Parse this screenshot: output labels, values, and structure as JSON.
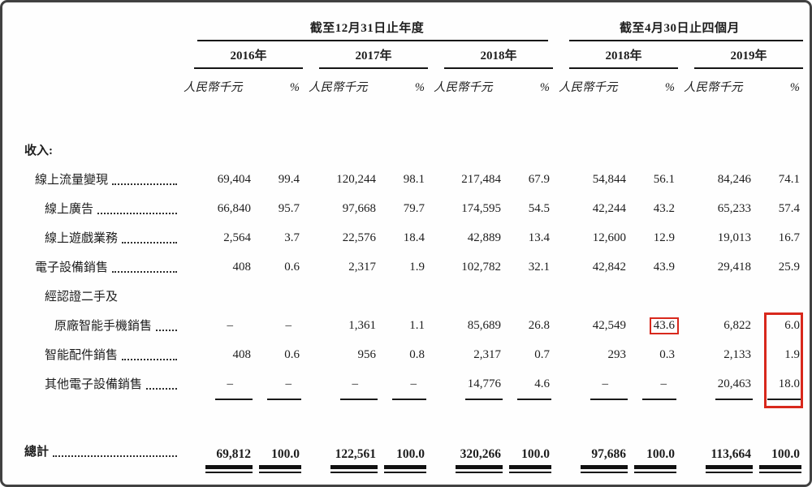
{
  "document": {
    "section_label": "收入:",
    "unit_label": "人民幣千元",
    "pct_label": "%",
    "col_groups": [
      {
        "title": "截至12月31日止年度",
        "years": [
          "2016年",
          "2017年",
          "2018年"
        ]
      },
      {
        "title": "截至4月30日止四個月",
        "years": [
          "2018年",
          "2019年"
        ]
      }
    ],
    "rows": [
      {
        "label": "線上流量變現",
        "indent": 1,
        "leader": true,
        "values": [
          "69,404",
          "99.4",
          "120,244",
          "98.1",
          "217,484",
          "67.9",
          "54,844",
          "56.1",
          "84,246",
          "74.1"
        ]
      },
      {
        "label": "線上廣告",
        "indent": 2,
        "leader": true,
        "values": [
          "66,840",
          "95.7",
          "97,668",
          "79.7",
          "174,595",
          "54.5",
          "42,244",
          "43.2",
          "65,233",
          "57.4"
        ]
      },
      {
        "label": "線上遊戲業務",
        "indent": 2,
        "leader": true,
        "values": [
          "2,564",
          "3.7",
          "22,576",
          "18.4",
          "42,889",
          "13.4",
          "12,600",
          "12.9",
          "19,013",
          "16.7"
        ]
      },
      {
        "label": "電子設備銷售",
        "indent": 1,
        "leader": true,
        "values": [
          "408",
          "0.6",
          "2,317",
          "1.9",
          "102,782",
          "32.1",
          "42,842",
          "43.9",
          "29,418",
          "25.9"
        ]
      },
      {
        "label": "經認證二手及",
        "indent": 2,
        "leader": false,
        "values": [
          "",
          "",
          "",
          "",
          "",
          "",
          "",
          "",
          "",
          ""
        ]
      },
      {
        "label": "原廠智能手機銷售",
        "indent": 3,
        "leader": true,
        "highlight": [
          7
        ],
        "values": [
          "–",
          "–",
          "1,361",
          "1.1",
          "85,689",
          "26.8",
          "42,549",
          "43.6",
          "6,822",
          "6.0"
        ]
      },
      {
        "label": "智能配件銷售",
        "indent": 2,
        "leader": true,
        "values": [
          "408",
          "0.6",
          "956",
          "0.8",
          "2,317",
          "0.7",
          "293",
          "0.3",
          "2,133",
          "1.9"
        ]
      },
      {
        "label": "其他電子設備銷售",
        "indent": 2,
        "leader": true,
        "values": [
          "–",
          "–",
          "–",
          "–",
          "14,776",
          "4.6",
          "–",
          "–",
          "20,463",
          "18.0"
        ]
      }
    ],
    "total": {
      "label": "總計",
      "values": [
        "69,812",
        "100.0",
        "122,561",
        "100.0",
        "320,266",
        "100.0",
        "97,686",
        "100.0",
        "113,664",
        "100.0"
      ]
    },
    "highlight_color": "#d8281c"
  }
}
